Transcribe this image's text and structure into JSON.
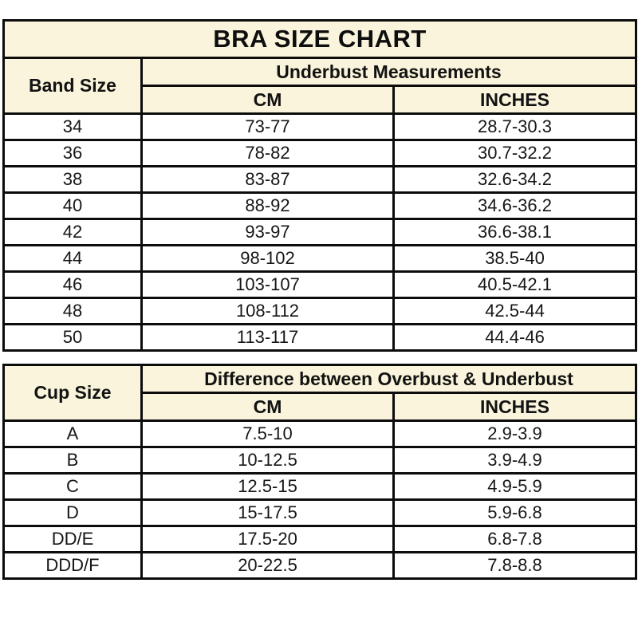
{
  "colors": {
    "header_background": "#f9f4db",
    "row_background": "#ffffff",
    "border": "#0c0c0c",
    "text": "#161616"
  },
  "chart_data": [
    {
      "type": "table",
      "title": "BRA SIZE CHART",
      "row_header": "Band Size",
      "group_header": "Underbust Measurements",
      "sub_headers": [
        "CM",
        "INCHES"
      ],
      "rows": [
        [
          "34",
          "73-77",
          "28.7-30.3"
        ],
        [
          "36",
          "78-82",
          "30.7-32.2"
        ],
        [
          "38",
          "83-87",
          "32.6-34.2"
        ],
        [
          "40",
          "88-92",
          "34.6-36.2"
        ],
        [
          "42",
          "93-97",
          "36.6-38.1"
        ],
        [
          "44",
          "98-102",
          "38.5-40"
        ],
        [
          "46",
          "103-107",
          "40.5-42.1"
        ],
        [
          "48",
          "108-112",
          "42.5-44"
        ],
        [
          "50",
          "113-117",
          "44.4-46"
        ]
      ]
    },
    {
      "type": "table",
      "title": "",
      "row_header": "Cup Size",
      "group_header": "Difference between Overbust & Underbust",
      "sub_headers": [
        "CM",
        "INCHES"
      ],
      "rows": [
        [
          "A",
          "7.5-10",
          "2.9-3.9"
        ],
        [
          "B",
          "10-12.5",
          "3.9-4.9"
        ],
        [
          "C",
          "12.5-15",
          "4.9-5.9"
        ],
        [
          "D",
          "15-17.5",
          "5.9-6.8"
        ],
        [
          "DD/E",
          "17.5-20",
          "6.8-7.8"
        ],
        [
          "DDD/F",
          "20-22.5",
          "7.8-8.8"
        ]
      ]
    }
  ]
}
